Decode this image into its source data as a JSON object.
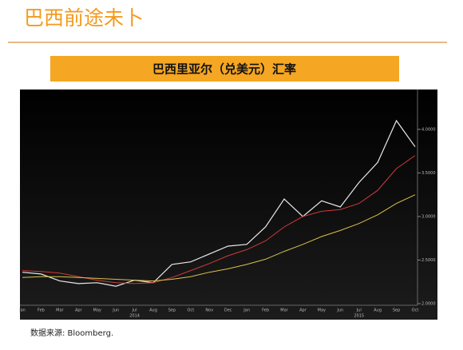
{
  "header": {
    "title": "巴西前途未卜"
  },
  "chart_data": {
    "type": "line",
    "title": "巴西里亚尔（兑美元）汇率",
    "source": "数据来源: Bloomberg.",
    "categories": [
      "Jan",
      "Feb",
      "Mar",
      "Apr",
      "May",
      "Jun",
      "Jul",
      "Aug",
      "Sep",
      "Oct",
      "Nov",
      "Dec",
      "Jan",
      "Feb",
      "Mar",
      "Apr",
      "May",
      "Jun",
      "Jul",
      "Aug",
      "Sep",
      "Oct"
    ],
    "years": [
      "2014",
      "2015"
    ],
    "series": [
      {
        "color": "#e8e8e8",
        "values": [
          2.36,
          2.34,
          2.26,
          2.23,
          2.24,
          2.2,
          2.27,
          2.24,
          2.45,
          2.48,
          2.57,
          2.66,
          2.68,
          2.88,
          3.2,
          3.0,
          3.18,
          3.11,
          3.39,
          3.62,
          4.1,
          3.8
        ]
      },
      {
        "color": "#d03a3a",
        "values": [
          2.38,
          2.37,
          2.35,
          2.31,
          2.27,
          2.24,
          2.23,
          2.24,
          2.3,
          2.38,
          2.46,
          2.55,
          2.62,
          2.72,
          2.88,
          3.0,
          3.06,
          3.08,
          3.15,
          3.3,
          3.55,
          3.7
        ]
      },
      {
        "color": "#d9c24a",
        "values": [
          2.3,
          2.31,
          2.31,
          2.3,
          2.29,
          2.28,
          2.27,
          2.26,
          2.28,
          2.31,
          2.36,
          2.4,
          2.45,
          2.51,
          2.6,
          2.68,
          2.77,
          2.84,
          2.92,
          3.02,
          3.15,
          3.25
        ]
      }
    ],
    "ylim": [
      2.0,
      4.43
    ],
    "yticks": [
      {
        "value": 2.0,
        "label": "2.0000"
      },
      {
        "value": 2.5,
        "label": "2.5000"
      },
      {
        "value": 3.0,
        "label": "3.0000"
      },
      {
        "value": 3.5,
        "label": "3.5000"
      },
      {
        "value": 4.0,
        "label": "4.0000"
      }
    ],
    "grid": false
  }
}
